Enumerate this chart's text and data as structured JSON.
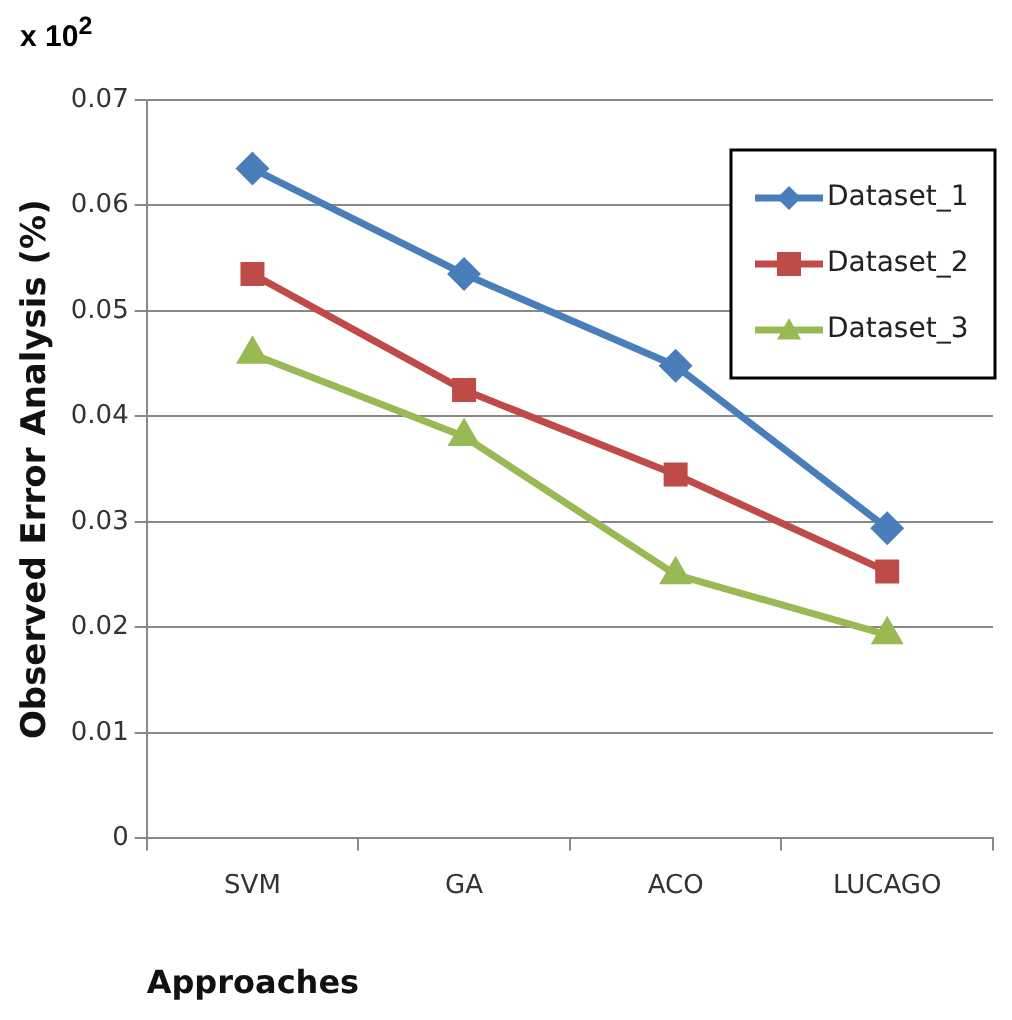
{
  "chart_data": {
    "type": "line",
    "xlabel": "Approaches",
    "ylabel": "Observed Error Analysis (%)",
    "annotations": [
      "x 10$^{2}$"
    ],
    "categories": [
      "SVM",
      "GA",
      "ACO",
      "LUCAGO"
    ],
    "series": [
      {
        "name": "Dataset_1",
        "color": "#4a7ebb",
        "marker": "diamond",
        "values": [
          0.0635,
          0.0535,
          0.0448,
          0.0294
        ]
      },
      {
        "name": "Dataset_2",
        "color": "#be4b48",
        "marker": "square",
        "values": [
          0.0535,
          0.0425,
          0.0345,
          0.0253
        ]
      },
      {
        "name": "Dataset_3",
        "color": "#98b954",
        "marker": "triangle",
        "values": [
          0.0459,
          0.0381,
          0.025,
          0.0193
        ]
      }
    ],
    "ylim": [
      0,
      0.07
    ],
    "yticks": [
      0,
      0.01,
      0.02,
      0.03,
      0.04,
      0.05,
      0.06,
      0.07
    ],
    "grid": "y",
    "legend": "top right"
  }
}
